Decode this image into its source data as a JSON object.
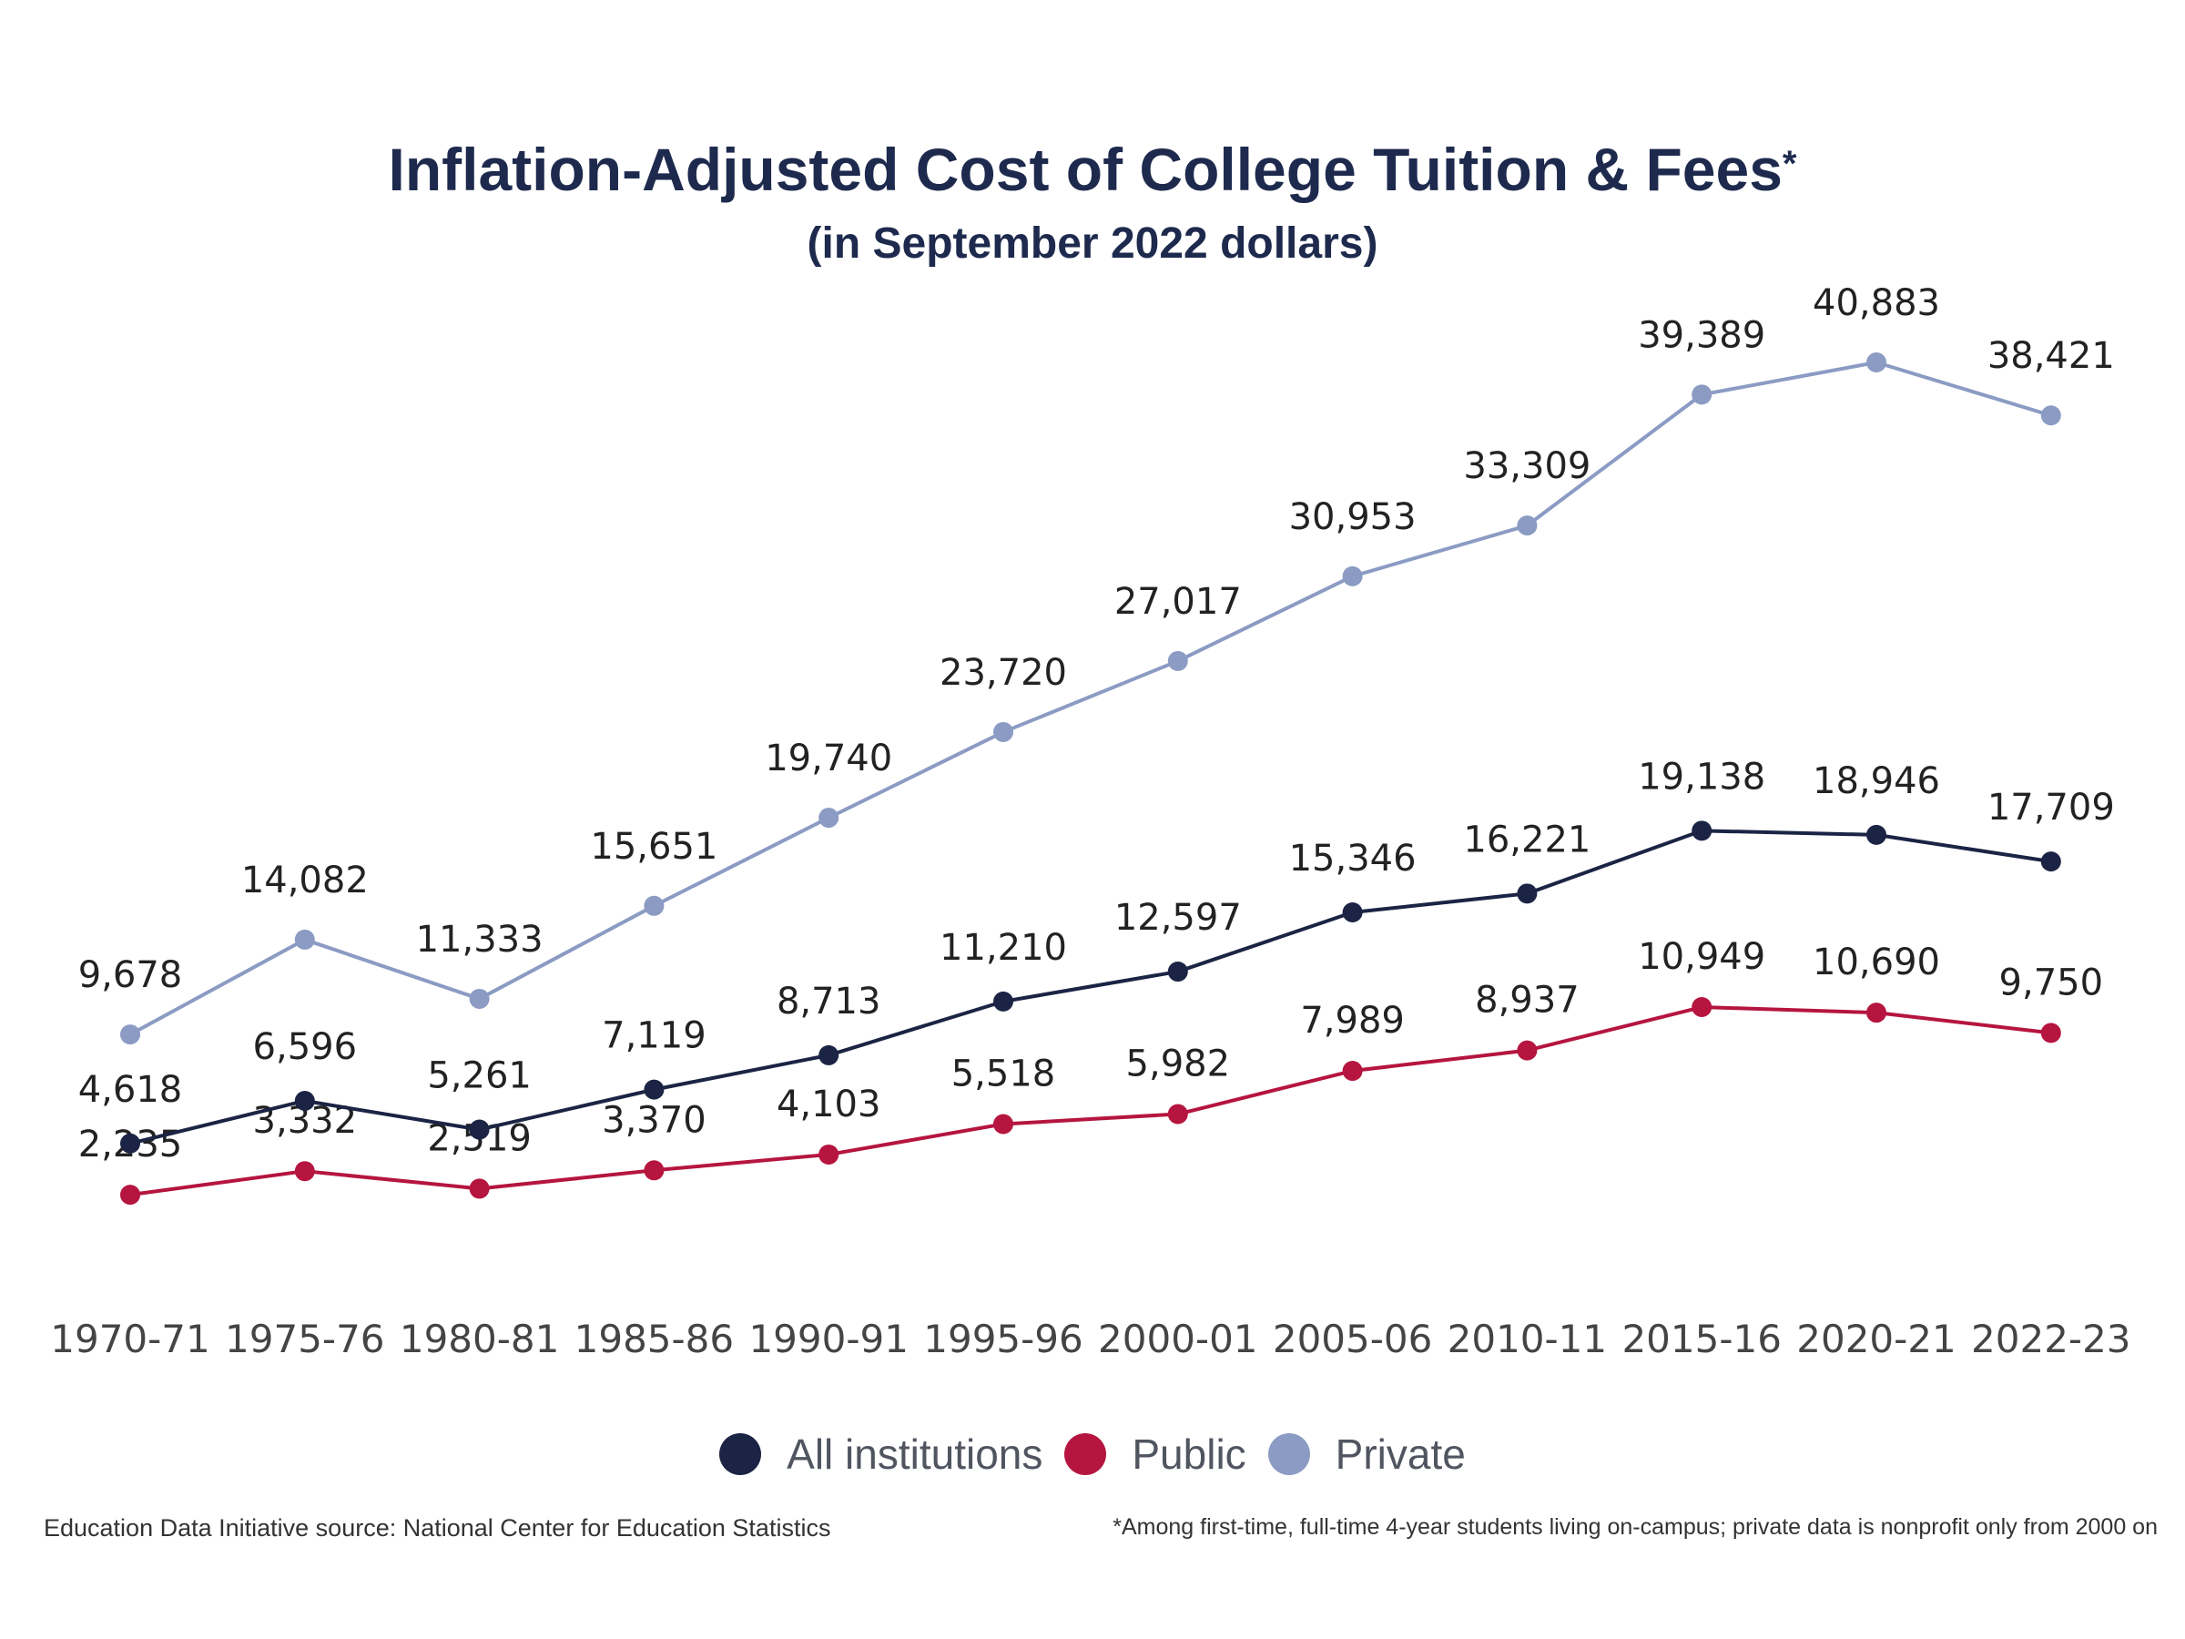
{
  "header": {
    "title": "Inflation-Adjusted Cost of College Tuition & Fees",
    "title_mark": "*",
    "subtitle": "(in September 2022 dollars)"
  },
  "chart_data": {
    "type": "line",
    "title": "Inflation-Adjusted Cost of College Tuition & Fees*",
    "subtitle": "(in September 2022 dollars)",
    "xlabel": "",
    "ylabel": "",
    "categories": [
      "1970-71",
      "1975-76",
      "1980-81",
      "1985-86",
      "1990-91",
      "1995-96",
      "2000-01",
      "2005-06",
      "2010-11",
      "2015-16",
      "2020-21",
      "2022-23"
    ],
    "series": [
      {
        "name": "All institutions",
        "color": "#1b2444",
        "values": [
          4618,
          6596,
          5261,
          7119,
          8713,
          11210,
          12597,
          15346,
          16221,
          19138,
          18946,
          17709
        ]
      },
      {
        "name": "Public",
        "color": "#b5153f",
        "values": [
          2235,
          3332,
          2519,
          3370,
          4103,
          5518,
          5982,
          7989,
          8937,
          10949,
          10690,
          9750
        ]
      },
      {
        "name": "Private",
        "color": "#8b9bc3",
        "values": [
          9678,
          14082,
          11333,
          15651,
          19740,
          23720,
          27017,
          30953,
          33309,
          39389,
          40883,
          38421
        ]
      }
    ],
    "data_labels": [
      [
        "4,618",
        "6,596",
        "5,261",
        "7,119",
        "8,713",
        "11,210",
        "12,597",
        "15,346",
        "16,221",
        "19,138",
        "18,946",
        "17,709"
      ],
      [
        "2,235",
        "3,332",
        "2,519",
        "3,370",
        "4,103",
        "5,518",
        "5,982",
        "7,989",
        "8,937",
        "10,949",
        "10,690",
        "9,750"
      ],
      [
        "9,678",
        "14,082",
        "11,333",
        "15,651",
        "19,740",
        "23,720",
        "27,017",
        "30,953",
        "33,309",
        "39,389",
        "40,883",
        "38,421"
      ]
    ],
    "ylim": [
      0,
      45000
    ],
    "grid": false,
    "legend": "bottom-center"
  },
  "legend": {
    "items": [
      {
        "label": "All institutions",
        "color": "#1b2444"
      },
      {
        "label": "Public",
        "color": "#b5153f"
      },
      {
        "label": "Private",
        "color": "#8b9bc3"
      }
    ]
  },
  "footer": {
    "source": "Education Data Initiative source: National Center for Education Statistics",
    "note": "*Among first-time, full-time 4-year students living on-campus; private data is nonprofit only from 2000 on"
  },
  "colors": {
    "title": "#1e2a4d",
    "label": "#222222",
    "axis_label": "#444444"
  }
}
